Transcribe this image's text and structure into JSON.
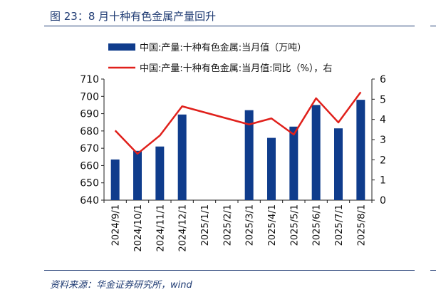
{
  "figure": {
    "title": "图 23：8 月十种有色金属产量回升",
    "source": "资料来源：华金证券研究所，wind"
  },
  "colors": {
    "bar": "#0f3c8c",
    "line": "#e0201b",
    "axis": "#222222",
    "accent": "#1f3b73"
  },
  "chart_data": {
    "type": "bar",
    "categories": [
      "2024/9/1",
      "2024/10/1",
      "2024/11/1",
      "2024/12/1",
      "2025/1/1",
      "2025/2/1",
      "2025/3/1",
      "2025/4/1",
      "2025/5/1",
      "2025/6/1",
      "2025/7/1",
      "2025/8/1"
    ],
    "series": [
      {
        "name": "中国:产量:十种有色金属:当月值（万吨）",
        "type": "bar",
        "axis": "left",
        "values": [
          663.5,
          668.5,
          671.0,
          689.5,
          null,
          null,
          692.0,
          676.0,
          682.5,
          695.0,
          681.5,
          698.0
        ]
      },
      {
        "name": "中国:产量:十种有色金属:当月值:同比（%），右",
        "type": "line",
        "axis": "right",
        "values": [
          3.45,
          2.3,
          3.2,
          4.65,
          null,
          null,
          3.75,
          4.05,
          3.25,
          5.05,
          3.85,
          5.35
        ]
      }
    ],
    "ylim": [
      640,
      710
    ],
    "yticks": [
      "710",
      "700",
      "690",
      "680",
      "670",
      "660",
      "650",
      "640"
    ],
    "y2lim": [
      0,
      6
    ],
    "y2ticks": [
      "6",
      "5",
      "4",
      "3",
      "2",
      "1",
      "0"
    ],
    "legend_position": "top",
    "grid": false
  }
}
